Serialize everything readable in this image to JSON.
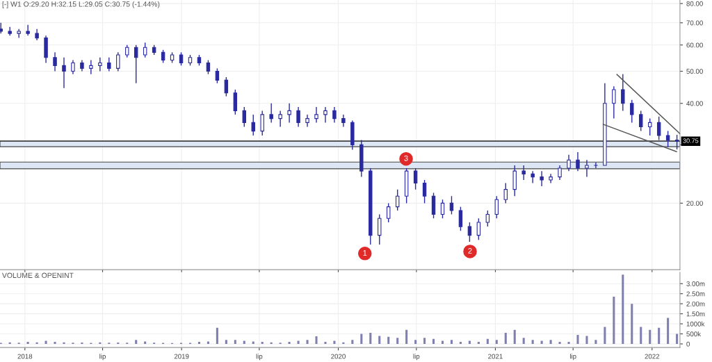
{
  "chart_data": [
    {
      "type": "candlestick",
      "title": "[-] W1 O:29.20 H:32.15 L:29.05 C:30.75 (-1.44%)",
      "color": "#2a2aa0",
      "log": true,
      "grid": true,
      "tick_labels": "y",
      "x": [
        "2017-11-06",
        "2017-11-27",
        "2017-12-18",
        "2018-01-08",
        "2018-01-29",
        "2018-02-19",
        "2018-03-12",
        "2018-04-02",
        "2018-04-23",
        "2018-05-14",
        "2018-06-04",
        "2018-06-25",
        "2018-07-16",
        "2018-08-06",
        "2018-08-27",
        "2018-09-17",
        "2018-10-08",
        "2018-10-29",
        "2018-11-19",
        "2018-12-10",
        "2018-12-31",
        "2019-01-21",
        "2019-02-11",
        "2019-03-04",
        "2019-03-25",
        "2019-04-15",
        "2019-05-06",
        "2019-05-27",
        "2019-06-17",
        "2019-07-08",
        "2019-07-29",
        "2019-08-19",
        "2019-09-09",
        "2019-09-30",
        "2019-10-21",
        "2019-11-11",
        "2019-12-02",
        "2019-12-23",
        "2020-01-13",
        "2020-02-03",
        "2020-02-24",
        "2020-03-16",
        "2020-04-06",
        "2020-04-27",
        "2020-05-18",
        "2020-06-08",
        "2020-06-29",
        "2020-07-20",
        "2020-08-10",
        "2020-08-31",
        "2020-09-21",
        "2020-10-12",
        "2020-11-02",
        "2020-11-23",
        "2020-12-14",
        "2021-01-04",
        "2021-01-25",
        "2021-02-15",
        "2021-03-08",
        "2021-03-29",
        "2021-04-19",
        "2021-05-10",
        "2021-05-31",
        "2021-06-21",
        "2021-07-12",
        "2021-08-02",
        "2021-08-23",
        "2021-09-13",
        "2021-10-04",
        "2021-10-25",
        "2021-11-15",
        "2021-12-06",
        "2021-12-27",
        "2022-01-17",
        "2022-02-07",
        "2022-02-28"
      ],
      "ohlc": [
        [
          67,
          70,
          65,
          66
        ],
        [
          66,
          68,
          64,
          65
        ],
        [
          65,
          67,
          63,
          66
        ],
        [
          66,
          69,
          64,
          65
        ],
        [
          65,
          67,
          62,
          63
        ],
        [
          63,
          64,
          53,
          55
        ],
        [
          55,
          57,
          50,
          52
        ],
        [
          52,
          55,
          44.5,
          50
        ],
        [
          50,
          54,
          49,
          53
        ],
        [
          53,
          54,
          50,
          51
        ],
        [
          51,
          54,
          49,
          52
        ],
        [
          52,
          55,
          50,
          53
        ],
        [
          53,
          55,
          50,
          51
        ],
        [
          51,
          57,
          50,
          56
        ],
        [
          56,
          60,
          55,
          59
        ],
        [
          59,
          60,
          46,
          55
        ],
        [
          56,
          61,
          55,
          59
        ],
        [
          59,
          60,
          56,
          57
        ],
        [
          57,
          58,
          53,
          54
        ],
        [
          54,
          57,
          53,
          56
        ],
        [
          56,
          57,
          52,
          53
        ],
        [
          53,
          56,
          52,
          55
        ],
        [
          55,
          56,
          52,
          53
        ],
        [
          53,
          54,
          49,
          50
        ],
        [
          50,
          51,
          46,
          47
        ],
        [
          47,
          48,
          42,
          43
        ],
        [
          43,
          44,
          37,
          38
        ],
        [
          38,
          39,
          34,
          35
        ],
        [
          35,
          37,
          32,
          33
        ],
        [
          33,
          38,
          32,
          37
        ],
        [
          37,
          40,
          35,
          36
        ],
        [
          36,
          38,
          34,
          37
        ],
        [
          37,
          40,
          35,
          38
        ],
        [
          38,
          39,
          34,
          35
        ],
        [
          35,
          37,
          34,
          36
        ],
        [
          36,
          39,
          35,
          37
        ],
        [
          37,
          39,
          35,
          38
        ],
        [
          38,
          39,
          35,
          36
        ],
        [
          36,
          37,
          34,
          35
        ],
        [
          35,
          35.5,
          29,
          30
        ],
        [
          30,
          31,
          24,
          25
        ],
        [
          25,
          25.5,
          15,
          16
        ],
        [
          16,
          18.5,
          15,
          18
        ],
        [
          18,
          20,
          17.5,
          19.5
        ],
        [
          19.5,
          22,
          19,
          21
        ],
        [
          21,
          25.5,
          20,
          25
        ],
        [
          25,
          25.5,
          22,
          23
        ],
        [
          23,
          23.5,
          20,
          21
        ],
        [
          21,
          21.5,
          18,
          18.5
        ],
        [
          18.5,
          20.5,
          18,
          20
        ],
        [
          20,
          21,
          18.5,
          19
        ],
        [
          19,
          19.5,
          16.5,
          17
        ],
        [
          17,
          17.5,
          15.3,
          16
        ],
        [
          16,
          18,
          15.5,
          17.5
        ],
        [
          17.5,
          19,
          17,
          18.5
        ],
        [
          18.5,
          21,
          18,
          20.5
        ],
        [
          20.5,
          23,
          20,
          22
        ],
        [
          22,
          26,
          21,
          25
        ],
        [
          25,
          26,
          23.5,
          24.5
        ],
        [
          24.5,
          25,
          23,
          24
        ],
        [
          24,
          25,
          22.5,
          23.5
        ],
        [
          23.5,
          24.5,
          23,
          24
        ],
        [
          24,
          26,
          23.5,
          25.5
        ],
        [
          25.5,
          28,
          25,
          27
        ],
        [
          27,
          28.5,
          25,
          25.5
        ],
        [
          25.5,
          27,
          24,
          26
        ],
        [
          26,
          26.5,
          25.5,
          26
        ],
        [
          26,
          46,
          26,
          40
        ],
        [
          40,
          45,
          36,
          44
        ],
        [
          44,
          49,
          38,
          40
        ],
        [
          40,
          41,
          35,
          37
        ],
        [
          37,
          38,
          33,
          34
        ],
        [
          34,
          36,
          32,
          35
        ],
        [
          35,
          36.5,
          31,
          32
        ],
        [
          32,
          33,
          29.5,
          31
        ],
        [
          31,
          32.15,
          29.05,
          30.75
        ]
      ],
      "series": [
        {
          "type": "line",
          "color": "#555555",
          "x": [
            "2021-10-11",
            "2022-03-07"
          ],
          "values": [
            48.9,
            32.4
          ]
        },
        {
          "type": "line",
          "color": "#555555",
          "x": [
            "2021-09-09",
            "2022-02-27"
          ],
          "values": [
            34.6,
            28.6
          ]
        }
      ],
      "xlim": [
        "2017-11-04",
        "2022-03-07"
      ],
      "xticks": [
        {
          "value": "2018-01-01",
          "label": null
        },
        {
          "value": "2018-07-01",
          "label": null
        },
        {
          "value": "2019-01-01",
          "label": null
        },
        {
          "value": "2019-07-01",
          "label": null
        },
        {
          "value": "2020-01-01",
          "label": null
        },
        {
          "value": "2020-07-01",
          "label": null
        },
        {
          "value": "2021-01-01",
          "label": null
        },
        {
          "value": "2021-07-01",
          "label": null
        },
        {
          "value": "2022-01-01",
          "label": null
        }
      ],
      "ylim": [
        12.6,
        82
      ],
      "yticks": [
        {
          "value": 20,
          "label": "20.00"
        },
        {
          "value": 30,
          "label": null
        },
        {
          "value": 40,
          "label": "40.00"
        },
        {
          "value": 50,
          "label": "50.00"
        },
        {
          "value": 60,
          "label": "60.00"
        },
        {
          "value": 70,
          "label": "70.00"
        },
        {
          "value": 80,
          "label": "80.00"
        }
      ],
      "ref_lines": [
        {
          "axis": "y",
          "value": 30.75,
          "label": "30.75"
        }
      ],
      "bands": [
        {
          "axis": "y",
          "from": 29.6,
          "to": 30.8,
          "color": "#dde6f5"
        },
        {
          "axis": "y",
          "from": 25.4,
          "to": 26.6,
          "color": "#dde6f5"
        }
      ],
      "annotations": [
        {
          "text": "1",
          "x": "2020-03-03",
          "y": 14.1
        },
        {
          "text": "2",
          "x": "2020-11-03",
          "y": 14.3
        },
        {
          "text": "3",
          "x": "2020-06-07",
          "y": 27.2
        }
      ]
    },
    {
      "type": "bar",
      "title": "VOLUME & OPENINT",
      "color": "#8080b0",
      "grid": true,
      "x": [
        "2017-11-06",
        "2017-11-27",
        "2017-12-18",
        "2018-01-08",
        "2018-01-29",
        "2018-02-19",
        "2018-03-12",
        "2018-04-02",
        "2018-04-23",
        "2018-05-14",
        "2018-06-04",
        "2018-06-25",
        "2018-07-16",
        "2018-08-06",
        "2018-08-27",
        "2018-09-17",
        "2018-10-08",
        "2018-10-29",
        "2018-11-19",
        "2018-12-10",
        "2018-12-31",
        "2019-01-21",
        "2019-02-11",
        "2019-03-04",
        "2019-03-25",
        "2019-04-15",
        "2019-05-06",
        "2019-05-27",
        "2019-06-17",
        "2019-07-08",
        "2019-07-29",
        "2019-08-19",
        "2019-09-09",
        "2019-09-30",
        "2019-10-21",
        "2019-11-11",
        "2019-12-02",
        "2019-12-23",
        "2020-01-13",
        "2020-02-03",
        "2020-02-24",
        "2020-03-16",
        "2020-04-06",
        "2020-04-27",
        "2020-05-18",
        "2020-06-08",
        "2020-06-29",
        "2020-07-20",
        "2020-08-10",
        "2020-08-31",
        "2020-09-21",
        "2020-10-12",
        "2020-11-02",
        "2020-11-23",
        "2020-12-14",
        "2021-01-04",
        "2021-01-25",
        "2021-02-15",
        "2021-03-08",
        "2021-03-29",
        "2021-04-19",
        "2021-05-10",
        "2021-05-31",
        "2021-06-21",
        "2021-07-12",
        "2021-08-02",
        "2021-08-23",
        "2021-09-13",
        "2021-10-04",
        "2021-10-25",
        "2021-11-15",
        "2021-12-06",
        "2021-12-27",
        "2022-01-17",
        "2022-02-07",
        "2022-02-28"
      ],
      "values": [
        50000,
        80000,
        60000,
        100000,
        80000,
        150000,
        100000,
        80000,
        60000,
        70000,
        50000,
        80000,
        60000,
        70000,
        60000,
        200000,
        120000,
        60000,
        50000,
        40000,
        50000,
        50000,
        100000,
        120000,
        800000,
        200000,
        200000,
        150000,
        120000,
        100000,
        80000,
        60000,
        100000,
        150000,
        200000,
        380000,
        100000,
        150000,
        80000,
        200000,
        500000,
        550000,
        400000,
        350000,
        300000,
        700000,
        200000,
        300000,
        250000,
        150000,
        200000,
        100000,
        150000,
        100000,
        250000,
        200000,
        550000,
        700000,
        300000,
        200000,
        150000,
        200000,
        100000,
        100000,
        450000,
        400000,
        200000,
        850000,
        2350000,
        3450000,
        2000000,
        850000,
        700000,
        800000,
        1300000,
        500000
      ],
      "xlim": [
        "2017-11-04",
        "2022-03-07"
      ],
      "xticks": [
        {
          "value": "2018-01-01",
          "label": "2018"
        },
        {
          "value": "2018-07-01",
          "label": "lip"
        },
        {
          "value": "2019-01-01",
          "label": "2019"
        },
        {
          "value": "2019-07-01",
          "label": "lip"
        },
        {
          "value": "2020-01-01",
          "label": "2020"
        },
        {
          "value": "2020-07-01",
          "label": "lip"
        },
        {
          "value": "2021-01-01",
          "label": "2021"
        },
        {
          "value": "2021-07-01",
          "label": "lip"
        },
        {
          "value": "2022-01-01",
          "label": "2022"
        }
      ],
      "ylim": [
        -180000,
        3570000
      ],
      "yticks": [
        0,
        {
          "value": 500000,
          "label": "500k"
        },
        {
          "value": 1000000,
          "label": "1000k"
        },
        {
          "value": 1500000,
          "label": "1.50m"
        },
        {
          "value": 2000000,
          "label": "2.00m"
        },
        {
          "value": 2500000,
          "label": "2.50m"
        },
        {
          "value": 3000000,
          "label": "3.00m"
        }
      ]
    }
  ]
}
